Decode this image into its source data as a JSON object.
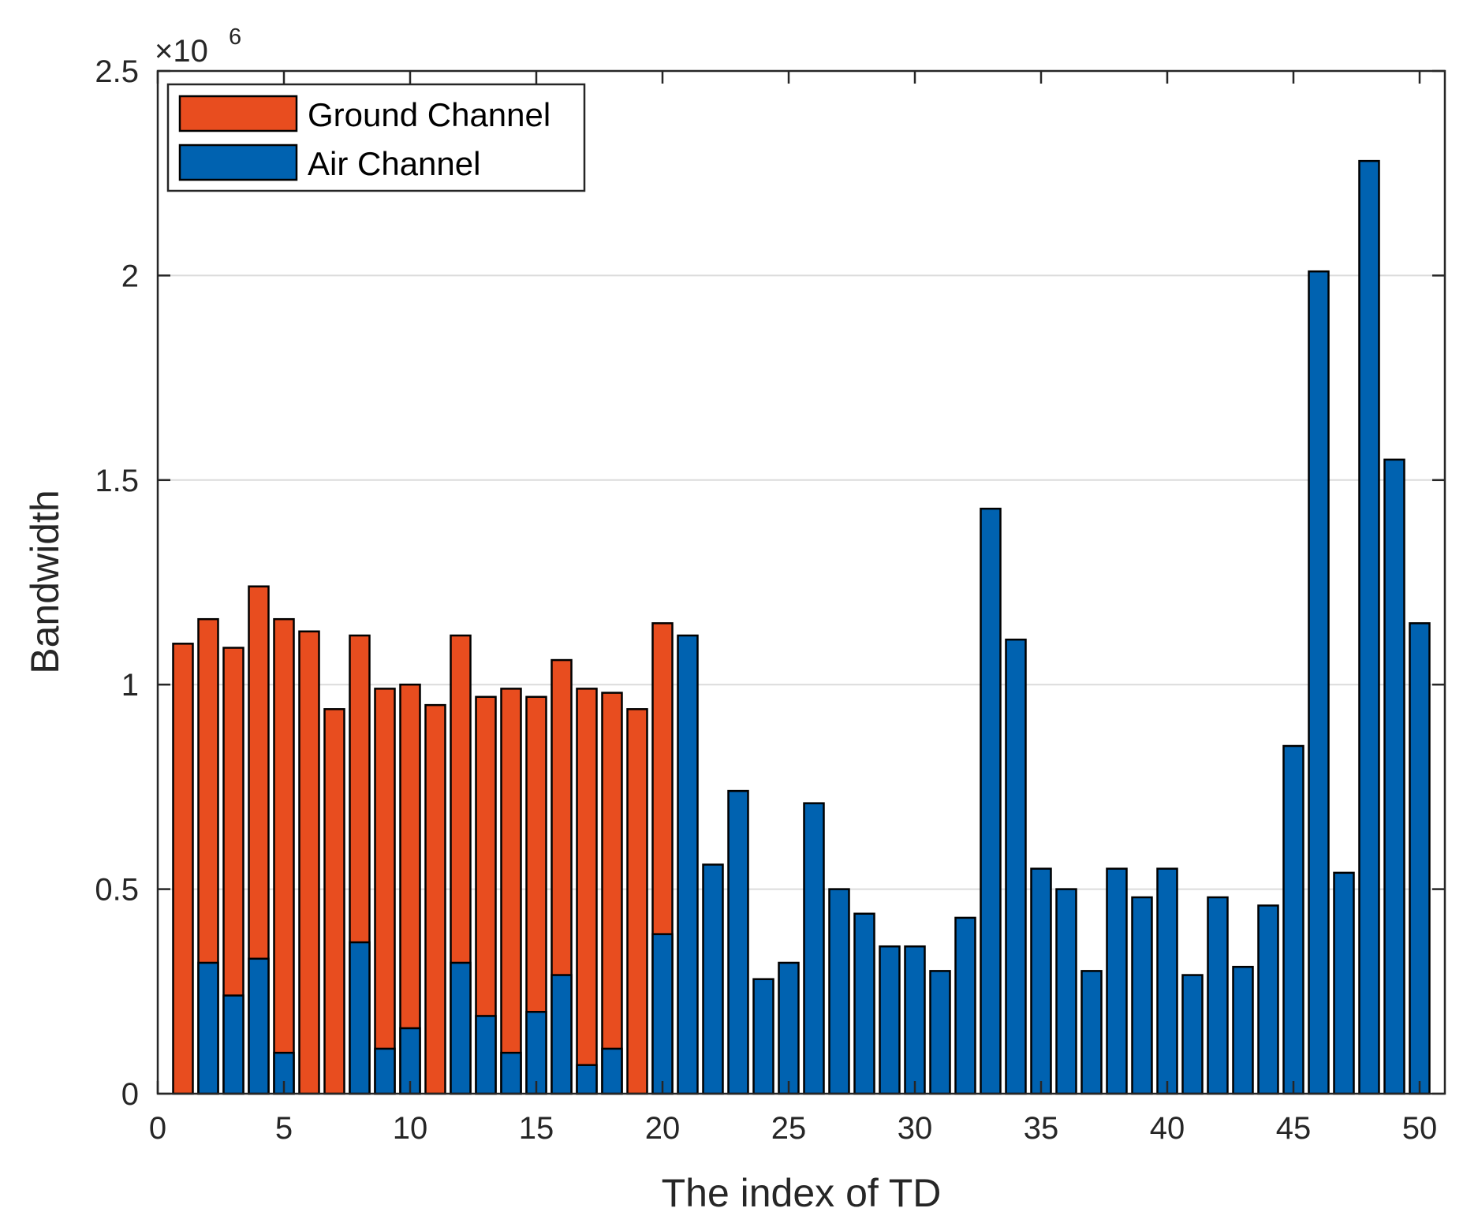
{
  "chart_data": {
    "type": "bar",
    "stacked": "overlay",
    "title": "",
    "xlabel": "The index of TD",
    "ylabel": "Bandwidth",
    "y_exponent_base": "×10",
    "y_exponent_power": "6",
    "xlim": [
      0,
      51
    ],
    "ylim": [
      0,
      2.5
    ],
    "x_ticks": [
      0,
      5,
      10,
      15,
      20,
      25,
      30,
      35,
      40,
      45,
      50
    ],
    "x_tick_labels": [
      "0",
      "5",
      "10",
      "15",
      "20",
      "25",
      "30",
      "35",
      "40",
      "45",
      "50"
    ],
    "y_ticks": [
      0,
      0.5,
      1,
      1.5,
      2,
      2.5
    ],
    "y_tick_labels": [
      "0",
      "0.5",
      "1",
      "1.5",
      "2",
      "2.5"
    ],
    "grid": "horizontal",
    "legend_position": "top-left",
    "colors": {
      "ground": "#e84d1f",
      "air": "#0062b0",
      "grid": "#dcdcdc",
      "axis": "#262626"
    },
    "x": [
      1,
      2,
      3,
      4,
      5,
      6,
      7,
      8,
      9,
      10,
      11,
      12,
      13,
      14,
      15,
      16,
      17,
      18,
      19,
      20,
      21,
      22,
      23,
      24,
      25,
      26,
      27,
      28,
      29,
      30,
      31,
      32,
      33,
      34,
      35,
      36,
      37,
      38,
      39,
      40,
      41,
      42,
      43,
      44,
      45,
      46,
      47,
      48,
      49,
      50
    ],
    "series": [
      {
        "name": "Ground Channel",
        "values": [
          1.1,
          1.16,
          1.09,
          1.24,
          1.16,
          1.13,
          0.94,
          1.12,
          0.99,
          1.0,
          0.95,
          1.12,
          0.97,
          0.99,
          0.97,
          1.06,
          0.99,
          0.98,
          0.94,
          1.15,
          0,
          0,
          0,
          0,
          0,
          0,
          0,
          0,
          0,
          0,
          0,
          0,
          0,
          0,
          0,
          0,
          0,
          0,
          0,
          0,
          0,
          0,
          0,
          0,
          0,
          0,
          0,
          0,
          0,
          0
        ]
      },
      {
        "name": "Air Channel",
        "values": [
          0,
          0.32,
          0.24,
          0.33,
          0.1,
          0,
          0,
          0.37,
          0.11,
          0.16,
          0,
          0.32,
          0.19,
          0.1,
          0.2,
          0.29,
          0.07,
          0.11,
          0,
          0.39,
          1.12,
          0.56,
          0.74,
          0.28,
          0.32,
          0.71,
          0.5,
          0.44,
          0.36,
          0.36,
          0.3,
          0.43,
          1.43,
          1.11,
          0.55,
          0.5,
          0.3,
          0.55,
          0.48,
          0.55,
          0.29,
          0.48,
          0.31,
          0.46,
          0.85,
          2.01,
          0.54,
          2.28,
          1.55,
          1.15
        ]
      }
    ]
  }
}
